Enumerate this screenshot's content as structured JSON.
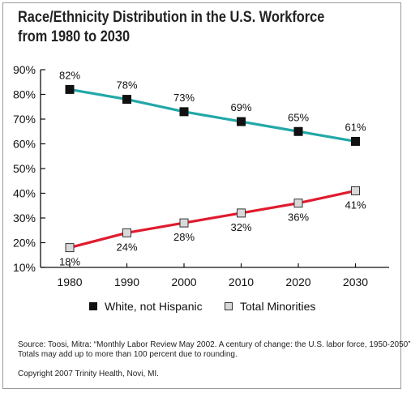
{
  "title_lines": [
    "Race/Ethnicity Distribution in the U.S. Workforce",
    "from 1980 to 2030"
  ],
  "chart_data": {
    "type": "line",
    "title": "Race/Ethnicity Distribution in the U.S. Workforce from 1980 to 2030",
    "xlabel": "",
    "ylabel": "",
    "categories": [
      "1980",
      "1990",
      "2000",
      "2010",
      "2020",
      "2030"
    ],
    "ylim": [
      10,
      90
    ],
    "yticks": [
      10,
      20,
      30,
      40,
      50,
      60,
      70,
      80,
      90
    ],
    "ytick_labels": [
      "10%",
      "20%",
      "30%",
      "40%",
      "50%",
      "60%",
      "70%",
      "80%",
      "90%"
    ],
    "grid": false,
    "legend_position": "bottom",
    "series": [
      {
        "name": "White, not Hispanic",
        "values": [
          82,
          78,
          73,
          69,
          65,
          61
        ],
        "labels": [
          "82%",
          "78%",
          "73%",
          "69%",
          "65%",
          "61%"
        ],
        "label_position": "above",
        "line_color": "#22a8a8",
        "marker_fill": "#111111",
        "marker_stroke": "#111111"
      },
      {
        "name": "Total Minorities",
        "values": [
          18,
          24,
          28,
          32,
          36,
          41
        ],
        "labels": [
          "18%",
          "24%",
          "28%",
          "32%",
          "36%",
          "41%"
        ],
        "label_position": "below",
        "line_color": "#e01b2e",
        "marker_fill": "#d9d9d9",
        "marker_stroke": "#333333"
      }
    ]
  },
  "source_lines": [
    "Source: Toosi, Mitra:  “Monthly Labor Review May 2002. A century of change: the U.S. labor force, 1950-2050”",
    "Totals may add up to more than 100 percent due to rounding."
  ],
  "copyright": "Copyright 2007 Trinity Health, Novi, MI."
}
